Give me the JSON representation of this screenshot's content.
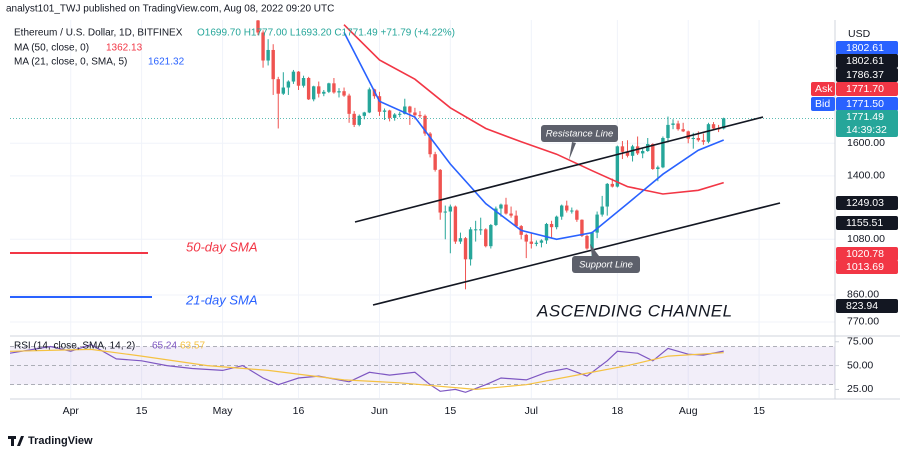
{
  "header": {
    "published": "analyst101_TWJ published on TradingView.com, Aug 08, 2022 09:20 UTC"
  },
  "footer": {
    "brand": "TradingView"
  },
  "chart_data": [
    {
      "type": "candlestick",
      "symbol": "Ethereum / U.S. Dollar, 1D, BITFINEX",
      "ohlc_legend": "O1699.70 H1777.00 L1693.20 C1771.49 +71.79 (+4.22%)",
      "currency": "USD",
      "log_scale": true,
      "grid": true,
      "up_color": "#26a69a",
      "down_color": "#ef5350",
      "xlim": [
        "2022-03-20",
        "2022-08-30"
      ],
      "xticks": [
        {
          "value": "2022-04-01",
          "label": "Apr"
        },
        {
          "value": "2022-04-15",
          "label": "15"
        },
        {
          "value": "2022-05-01",
          "label": "May"
        },
        {
          "value": "2022-05-16",
          "label": "16"
        },
        {
          "value": "2022-06-01",
          "label": "Jun"
        },
        {
          "value": "2022-06-15",
          "label": "15"
        },
        {
          "value": "2022-07-01",
          "label": "Jul"
        },
        {
          "value": "2022-07-18",
          "label": "18"
        },
        {
          "value": "2022-08-01",
          "label": "Aug"
        },
        {
          "value": "2022-08-15",
          "label": "15"
        }
      ],
      "ylim": [
        730,
        2650
      ],
      "yticks": [
        {
          "value": 770,
          "label": "770.00"
        },
        {
          "value": 860,
          "label": "860.00"
        },
        {
          "value": 1080,
          "label": "1080.00"
        },
        {
          "value": 1400,
          "label": "1400.00"
        },
        {
          "value": 1600,
          "label": "1600.00"
        }
      ],
      "x": [
        "2022-05-08",
        "2022-05-09",
        "2022-05-10",
        "2022-05-11",
        "2022-05-12",
        "2022-05-13",
        "2022-05-14",
        "2022-05-15",
        "2022-05-16",
        "2022-05-17",
        "2022-05-18",
        "2022-05-19",
        "2022-05-20",
        "2022-05-21",
        "2022-05-22",
        "2022-05-23",
        "2022-05-24",
        "2022-05-25",
        "2022-05-26",
        "2022-05-27",
        "2022-05-28",
        "2022-05-29",
        "2022-05-30",
        "2022-05-31",
        "2022-06-01",
        "2022-06-02",
        "2022-06-03",
        "2022-06-04",
        "2022-06-05",
        "2022-06-06",
        "2022-06-07",
        "2022-06-08",
        "2022-06-09",
        "2022-06-10",
        "2022-06-11",
        "2022-06-12",
        "2022-06-13",
        "2022-06-14",
        "2022-06-15",
        "2022-06-16",
        "2022-06-17",
        "2022-06-18",
        "2022-06-19",
        "2022-06-20",
        "2022-06-21",
        "2022-06-22",
        "2022-06-23",
        "2022-06-24",
        "2022-06-25",
        "2022-06-26",
        "2022-06-27",
        "2022-06-28",
        "2022-06-29",
        "2022-06-30",
        "2022-07-01",
        "2022-07-02",
        "2022-07-03",
        "2022-07-04",
        "2022-07-05",
        "2022-07-06",
        "2022-07-07",
        "2022-07-08",
        "2022-07-09",
        "2022-07-10",
        "2022-07-11",
        "2022-07-12",
        "2022-07-13",
        "2022-07-14",
        "2022-07-15",
        "2022-07-16",
        "2022-07-17",
        "2022-07-18",
        "2022-07-19",
        "2022-07-20",
        "2022-07-21",
        "2022-07-22",
        "2022-07-23",
        "2022-07-24",
        "2022-07-25",
        "2022-07-26",
        "2022-07-27",
        "2022-07-28",
        "2022-07-29",
        "2022-07-30",
        "2022-07-31",
        "2022-08-01",
        "2022-08-02",
        "2022-08-03",
        "2022-08-04",
        "2022-08-05",
        "2022-08-06",
        "2022-08-07",
        "2022-08-08"
      ],
      "open": [
        2645,
        2518,
        2245,
        2344,
        2080,
        1960,
        2010,
        2060,
        2145,
        2025,
        2090,
        1915,
        2020,
        1960,
        1975,
        2045,
        1970,
        1980,
        1945,
        1805,
        1725,
        1790,
        1815,
        1995,
        1940,
        1820,
        1830,
        1775,
        1800,
        1805,
        1860,
        1815,
        1795,
        1790,
        1665,
        1530,
        1435,
        1205,
        1210,
        1235,
        1070,
        1085,
        995,
        1125,
        1125,
        1125,
        1050,
        1145,
        1225,
        1245,
        1200,
        1190,
        1140,
        1100,
        1070,
        1060,
        1065,
        1075,
        1150,
        1135,
        1185,
        1240,
        1215,
        1215,
        1170,
        1095,
        1040,
        1110,
        1195,
        1235,
        1355,
        1340,
        1580,
        1545,
        1520,
        1580,
        1535,
        1550,
        1595,
        1440,
        1450,
        1635,
        1725,
        1735,
        1695,
        1680,
        1630,
        1635,
        1620,
        1610,
        1730,
        1700,
        1699.7
      ],
      "high": [
        2680,
        2540,
        2450,
        2400,
        2100,
        2140,
        2070,
        2160,
        2150,
        2110,
        2100,
        2025,
        2060,
        1990,
        2050,
        2090,
        2005,
        2010,
        1960,
        1825,
        1800,
        1820,
        2010,
        2000,
        1975,
        1845,
        1835,
        1810,
        1820,
        1920,
        1865,
        1850,
        1825,
        1800,
        1675,
        1545,
        1440,
        1240,
        1245,
        1240,
        1110,
        1090,
        1135,
        1165,
        1180,
        1130,
        1150,
        1235,
        1250,
        1280,
        1235,
        1215,
        1145,
        1105,
        1110,
        1075,
        1080,
        1155,
        1165,
        1190,
        1245,
        1265,
        1230,
        1220,
        1172,
        1100,
        1115,
        1210,
        1290,
        1360,
        1385,
        1585,
        1615,
        1620,
        1590,
        1645,
        1565,
        1635,
        1600,
        1460,
        1645,
        1785,
        1765,
        1755,
        1740,
        1685,
        1670,
        1680,
        1665,
        1740,
        1745,
        1725,
        1777
      ],
      "low": [
        2490,
        2180,
        2200,
        1950,
        1700,
        1950,
        1950,
        2040,
        1990,
        2010,
        1910,
        1900,
        1930,
        1940,
        1965,
        1960,
        1930,
        1935,
        1740,
        1710,
        1715,
        1765,
        1810,
        1920,
        1790,
        1760,
        1750,
        1755,
        1780,
        1800,
        1725,
        1765,
        1775,
        1650,
        1510,
        1425,
        1170,
        1080,
        1020,
        1060,
        1060,
        880,
        970,
        1070,
        1100,
        1045,
        1040,
        1140,
        1185,
        1195,
        1180,
        1135,
        1080,
        1000,
        1040,
        1050,
        1045,
        1060,
        1085,
        1125,
        1170,
        1205,
        1200,
        1160,
        1090,
        1035,
        1005,
        1085,
        1185,
        1190,
        1335,
        1335,
        1500,
        1510,
        1485,
        1525,
        1505,
        1545,
        1435,
        1370,
        1445,
        1605,
        1695,
        1685,
        1675,
        1600,
        1565,
        1610,
        1590,
        1600,
        1695,
        1675,
        1693.2
      ],
      "close": [
        2518,
        2245,
        2344,
        2080,
        1960,
        2010,
        2060,
        2145,
        2025,
        2090,
        1915,
        2020,
        1960,
        1975,
        2045,
        1970,
        1980,
        1945,
        1805,
        1725,
        1790,
        1815,
        1995,
        1940,
        1820,
        1830,
        1775,
        1800,
        1805,
        1860,
        1815,
        1795,
        1790,
        1665,
        1530,
        1435,
        1205,
        1210,
        1235,
        1070,
        1085,
        995,
        1125,
        1125,
        1125,
        1050,
        1145,
        1225,
        1245,
        1200,
        1190,
        1140,
        1100,
        1070,
        1060,
        1065,
        1075,
        1150,
        1135,
        1185,
        1240,
        1215,
        1215,
        1170,
        1095,
        1040,
        1110,
        1195,
        1235,
        1355,
        1340,
        1580,
        1545,
        1520,
        1580,
        1535,
        1550,
        1595,
        1440,
        1450,
        1635,
        1725,
        1735,
        1695,
        1680,
        1630,
        1635,
        1620,
        1610,
        1730,
        1700,
        1699.7,
        1771.49
      ],
      "series": [
        {
          "name": "MA (50, close, 0)",
          "legend_value": "1362.13",
          "color": "#f23645",
          "x": [
            "2022-05-25",
            "2022-06-01",
            "2022-06-08",
            "2022-06-15",
            "2022-06-22",
            "2022-06-29",
            "2022-07-06",
            "2022-07-13",
            "2022-07-20",
            "2022-07-27",
            "2022-08-03",
            "2022-08-08"
          ],
          "values": [
            2600,
            2250,
            2080,
            1850,
            1700,
            1610,
            1530,
            1430,
            1340,
            1300,
            1320,
            1362.13
          ]
        },
        {
          "name": "MA (21, close, 0, SMA, 5)",
          "legend_value": "1621.32",
          "color": "#2962ff",
          "x": [
            "2022-05-25",
            "2022-06-01",
            "2022-06-08",
            "2022-06-15",
            "2022-06-22",
            "2022-06-29",
            "2022-07-06",
            "2022-07-13",
            "2022-07-20",
            "2022-07-27",
            "2022-08-03",
            "2022-08-08"
          ],
          "values": [
            2520,
            1900,
            1780,
            1470,
            1250,
            1120,
            1080,
            1110,
            1250,
            1410,
            1555,
            1621.32
          ]
        }
      ],
      "price_tags": [
        {
          "label": "1802.61",
          "color": "#2962ff"
        },
        {
          "label": "1802.61",
          "color": "#131722"
        },
        {
          "label": "1786.37",
          "color": "#131722"
        },
        {
          "label": "1771.70",
          "color": "#f23645"
        },
        {
          "label": "1771.50",
          "color": "#2962ff"
        },
        {
          "label": "1771.49",
          "color": "#26a69a"
        },
        {
          "label": "1249.03",
          "color": "#131722"
        },
        {
          "label": "1155.51",
          "color": "#131722"
        },
        {
          "label": "1020.78",
          "color": "#f23645"
        },
        {
          "label": "1013.69",
          "color": "#f23645"
        },
        {
          "label": "823.94",
          "color": "#131722"
        }
      ],
      "ask": "Ask",
      "bid": "Bid",
      "countdown": "14:39:32",
      "annotations": {
        "resistance": "Resistance Line",
        "support": "Support Line",
        "sma50": "50-day SMA",
        "sma21": "21-day SMA",
        "channel": "ASCENDING CHANNEL"
      }
    },
    {
      "type": "line",
      "title": "RSI (14, close, SMA, 14, 2)",
      "xlim": [
        "2022-03-20",
        "2022-08-30"
      ],
      "ylim": [
        16,
        80
      ],
      "yticks": [
        {
          "value": 25,
          "label": "25.00"
        },
        {
          "value": 50,
          "label": "50.00"
        },
        {
          "value": 75,
          "label": "75.00"
        }
      ],
      "band": [
        30,
        70
      ],
      "levels": [
        70,
        50,
        30
      ],
      "band_color": "#7e57c2",
      "series": [
        {
          "name": "RSI",
          "legend_value": "65.24",
          "color": "#7e57c2",
          "x": [
            "2022-03-20",
            "2022-03-28",
            "2022-04-01",
            "2022-04-05",
            "2022-04-10",
            "2022-04-15",
            "2022-04-20",
            "2022-04-25",
            "2022-05-01",
            "2022-05-05",
            "2022-05-09",
            "2022-05-12",
            "2022-05-16",
            "2022-05-20",
            "2022-05-26",
            "2022-05-30",
            "2022-06-03",
            "2022-06-08",
            "2022-06-11",
            "2022-06-13",
            "2022-06-16",
            "2022-06-18",
            "2022-06-22",
            "2022-06-25",
            "2022-06-30",
            "2022-07-04",
            "2022-07-08",
            "2022-07-12",
            "2022-07-16",
            "2022-07-18",
            "2022-07-22",
            "2022-07-25",
            "2022-07-28",
            "2022-08-01",
            "2022-08-04",
            "2022-08-08"
          ],
          "values": [
            63,
            70,
            65,
            72,
            57,
            55,
            50,
            47,
            45,
            50,
            37,
            30,
            37,
            39,
            33,
            43,
            40,
            43,
            30,
            23,
            25,
            22,
            30,
            37,
            35,
            43,
            47,
            39,
            55,
            65,
            63,
            55,
            68,
            62,
            61,
            65.24
          ]
        },
        {
          "name": "SMA",
          "legend_value": "63.57",
          "color": "#f5c242",
          "x": [
            "2022-03-20",
            "2022-04-05",
            "2022-04-15",
            "2022-04-28",
            "2022-05-10",
            "2022-05-25",
            "2022-06-05",
            "2022-06-20",
            "2022-06-30",
            "2022-07-10",
            "2022-07-20",
            "2022-07-28",
            "2022-08-08"
          ],
          "values": [
            65,
            67,
            60,
            50,
            45,
            35,
            32,
            25,
            30,
            40,
            50,
            60,
            63.57
          ]
        }
      ]
    }
  ]
}
